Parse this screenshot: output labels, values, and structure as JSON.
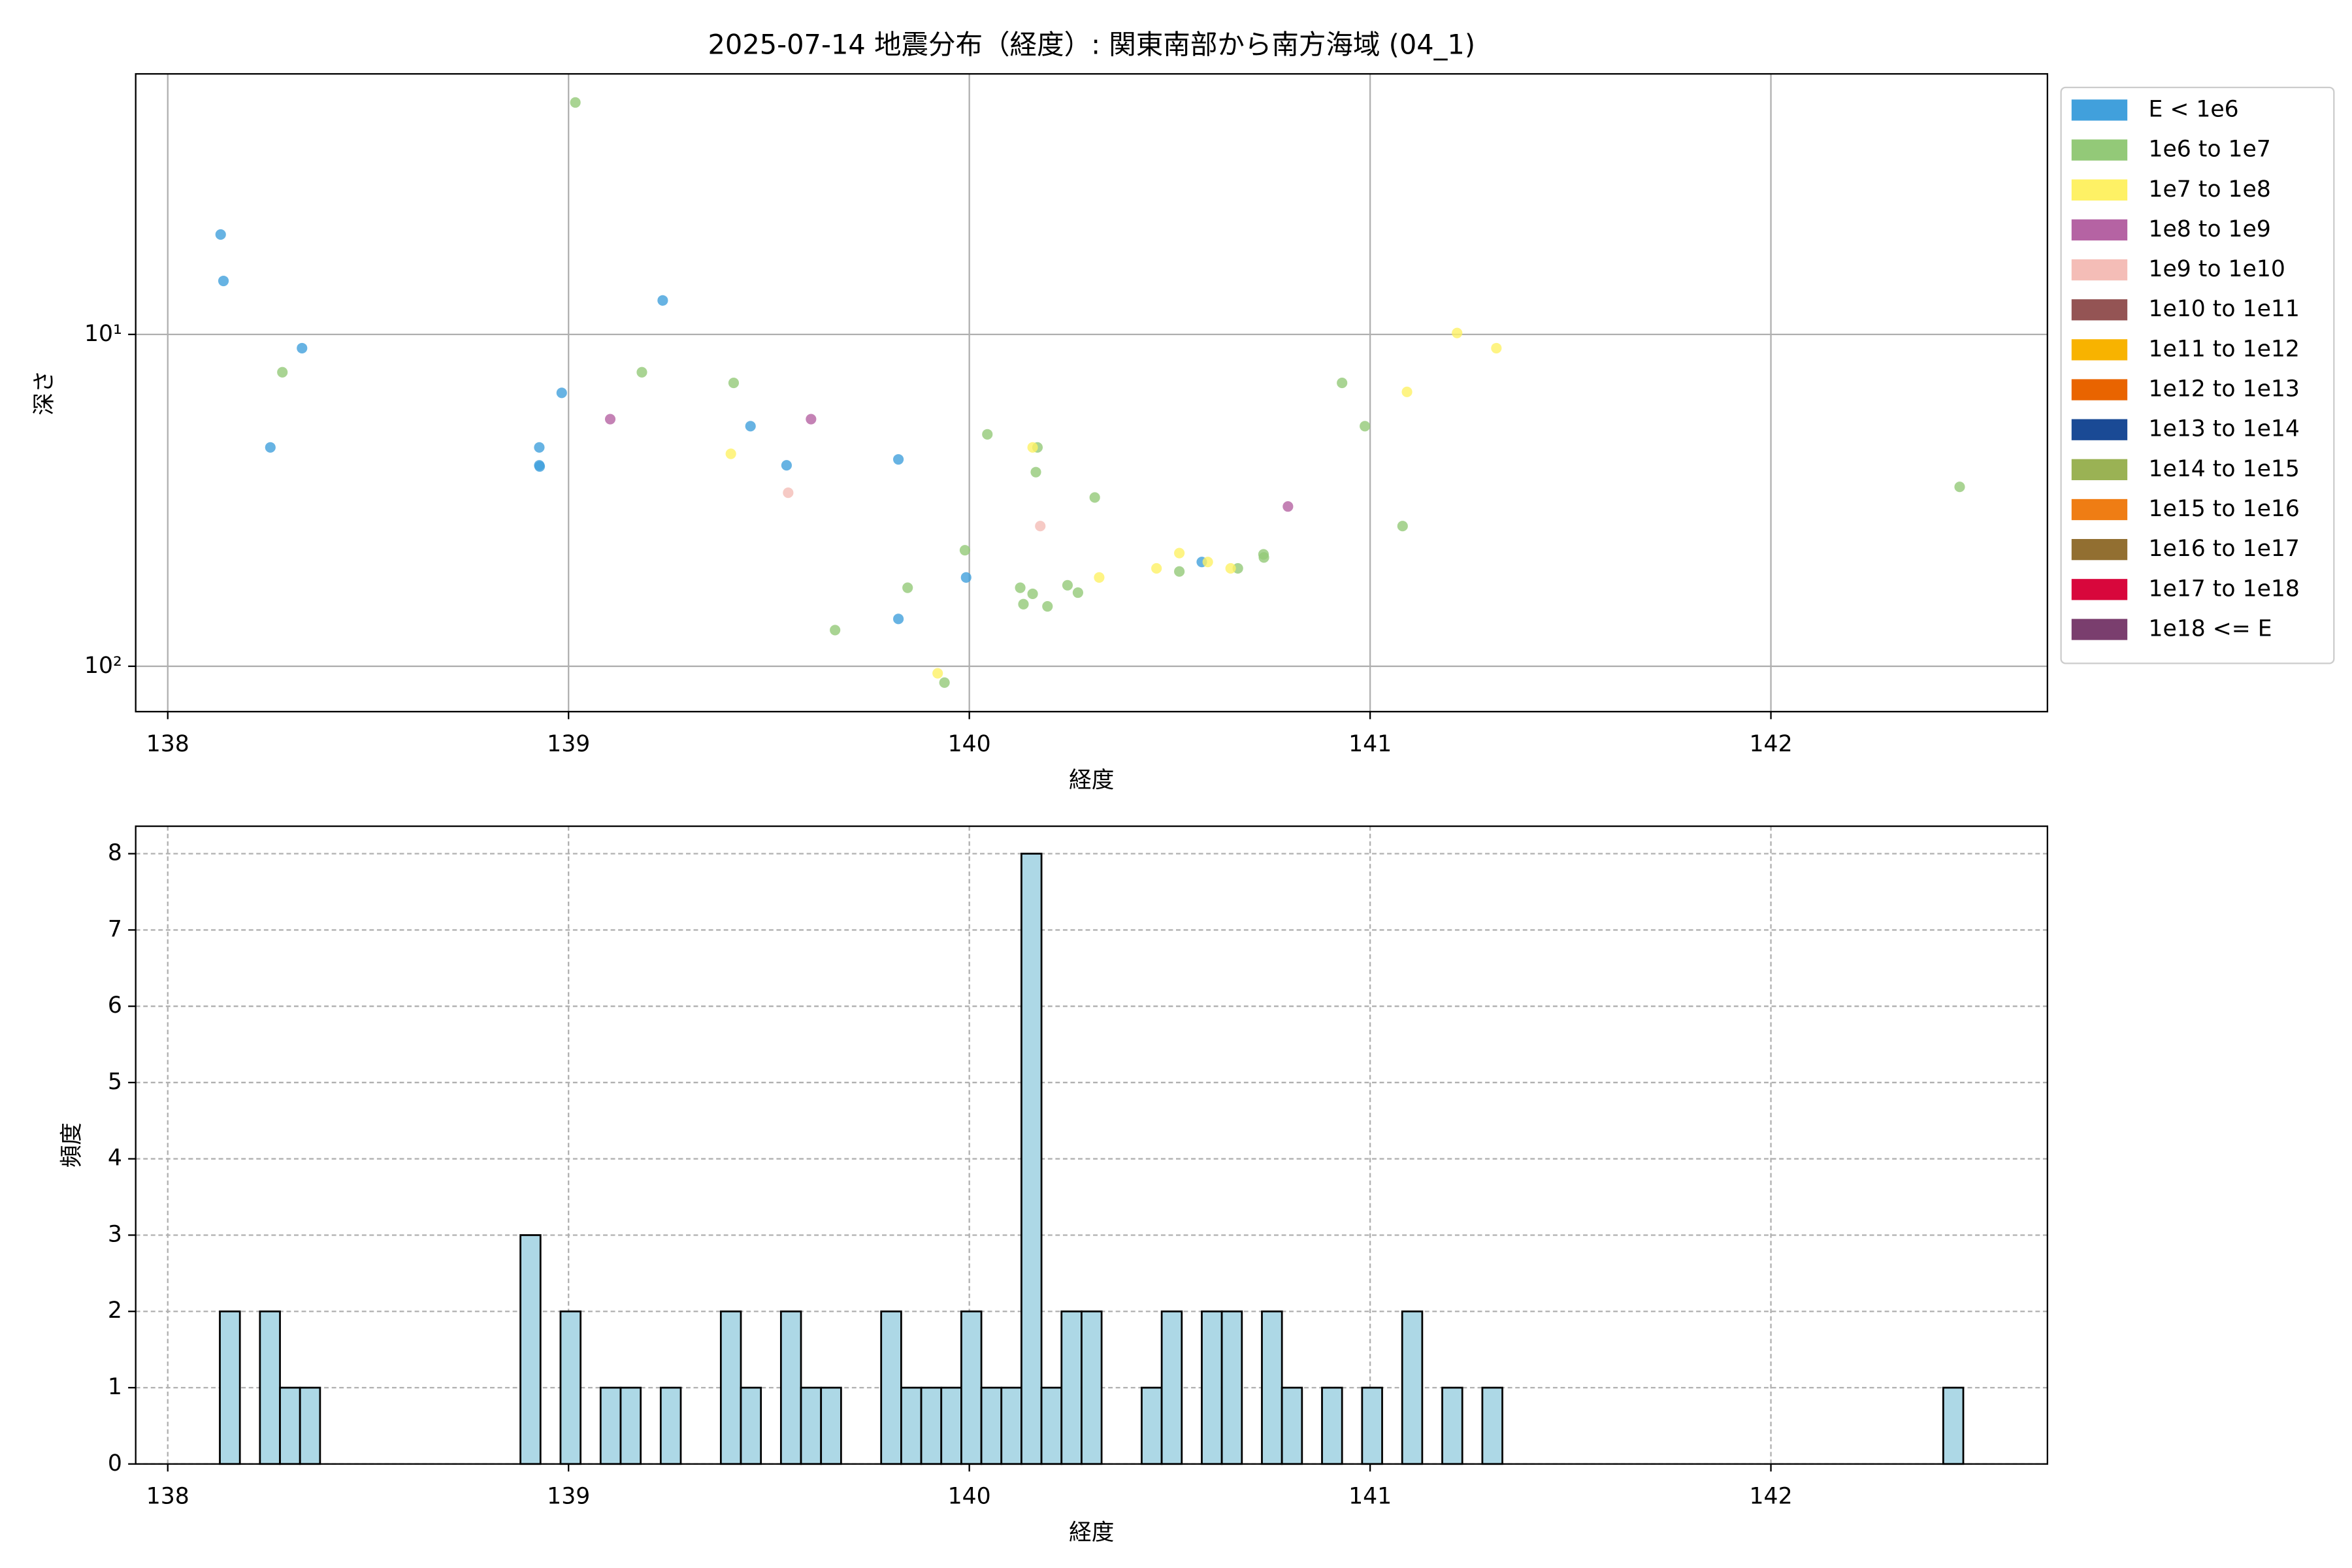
{
  "chart_data": [
    {
      "type": "scatter",
      "title": "2025-07-14 地震分布（経度）: 関東南部から南方海域 (04_1)",
      "x_label": "経度",
      "y_label": "深さ",
      "xlim": [
        137.92,
        142.69
      ],
      "xticks": [
        138,
        139,
        140,
        141,
        142
      ],
      "ylim": [
        1.64,
        137
      ],
      "y_scale": "log",
      "y_inverted": true,
      "yticks": [
        {
          "value": 10,
          "label": "10¹"
        },
        {
          "value": 100,
          "label": "10²"
        }
      ],
      "grid": true,
      "legend": "outside upper right",
      "series": [
        {
          "name": "E < 1e6",
          "color": "#41a0dc",
          "x": [
            138.132,
            138.139,
            138.256,
            138.335,
            138.927,
            138.927,
            138.928,
            138.983,
            139.235,
            139.454,
            139.544,
            139.823,
            139.823,
            139.992,
            140.58
          ],
          "y": [
            5.0,
            6.9,
            21.9,
            11.0,
            21.9,
            24.8,
            25.0,
            15.0,
            7.9,
            18.9,
            24.8,
            23.8,
            72,
            54,
            48.5
          ]
        },
        {
          "name": "1e6 to 1e7",
          "color": "#93c978",
          "x": [
            139.017,
            138.286,
            139.183,
            139.412,
            140.045,
            140.17,
            140.166,
            140.313,
            139.989,
            139.846,
            139.665,
            139.938,
            140.127,
            140.135,
            140.158,
            140.195,
            140.245,
            140.271,
            140.524,
            140.67,
            140.734,
            140.735,
            140.93,
            140.987,
            141.081,
            142.471
          ],
          "y": [
            2.0,
            13.0,
            13.0,
            14.0,
            20,
            21.9,
            26,
            31,
            44.7,
            58,
            77.8,
            112,
            58,
            65,
            60.5,
            66,
            57,
            60,
            51.8,
            50.7,
            46,
            47,
            14.0,
            18.9,
            37.8,
            28.8
          ]
        },
        {
          "name": "1e7 to 1e8",
          "color": "#fef165",
          "x": [
            139.405,
            140.158,
            140.324,
            140.467,
            140.524,
            140.595,
            140.652,
            139.921,
            141.092,
            141.217,
            141.315
          ],
          "y": [
            22.9,
            21.9,
            54,
            50.7,
            45.6,
            48.5,
            50.7,
            105,
            14.9,
            9.9,
            11.0
          ]
        },
        {
          "name": "1e8 to 1e9",
          "color": "#b563a3",
          "x": [
            139.104,
            139.605,
            140.795
          ],
          "y": [
            18,
            18,
            33
          ]
        },
        {
          "name": "1e9 to 1e10",
          "color": "#f4bdb7",
          "x": [
            139.548,
            140.177
          ],
          "y": [
            30,
            37.8
          ]
        },
        {
          "name": "1e10 to 1e11",
          "color": "#945454",
          "x": [],
          "y": []
        },
        {
          "name": "1e11 to 1e12",
          "color": "#f8b300",
          "x": [],
          "y": []
        },
        {
          "name": "1e12 to 1e13",
          "color": "#e96400",
          "x": [],
          "y": []
        },
        {
          "name": "1e13 to 1e14",
          "color": "#1a4a95",
          "x": [],
          "y": []
        },
        {
          "name": "1e14 to 1e15",
          "color": "#9ab254",
          "x": [],
          "y": []
        },
        {
          "name": "1e15 to 1e16",
          "color": "#ef7d14",
          "x": [],
          "y": []
        },
        {
          "name": "1e16 to 1e17",
          "color": "#926f31",
          "x": [],
          "y": []
        },
        {
          "name": "1e17 to 1e18",
          "color": "#d8073c",
          "x": [],
          "y": []
        },
        {
          "name": "1e18 <= E",
          "color": "#7a3e6e",
          "x": [],
          "y": []
        }
      ]
    },
    {
      "type": "histogram",
      "x_label": "経度",
      "y_label": "頻度",
      "color": "#add8e6",
      "edgecolor": "#000000",
      "xlim": [
        137.92,
        142.69
      ],
      "xticks": [
        138,
        139,
        140,
        141,
        142
      ],
      "ylim": [
        0,
        8.36
      ],
      "yticks": [
        0,
        1,
        2,
        3,
        4,
        5,
        6,
        7,
        8
      ],
      "grid": true,
      "grid_style": "dashed",
      "bins": [
        138.13,
        138.18,
        138.23,
        138.28,
        138.33,
        138.38,
        138.43,
        138.48,
        138.53,
        138.58,
        138.63,
        138.68,
        138.73,
        138.78,
        138.83,
        138.88,
        138.93,
        138.98,
        139.03,
        139.08,
        139.13,
        139.18,
        139.23,
        139.28,
        139.33,
        139.38,
        139.43,
        139.48,
        139.53,
        139.58,
        139.63,
        139.68,
        139.73,
        139.78,
        139.83,
        139.88,
        139.93,
        139.98,
        140.03,
        140.08,
        140.13,
        140.18,
        140.23,
        140.28,
        140.33,
        140.38,
        140.43,
        140.48,
        140.53,
        140.58,
        140.63,
        140.68,
        140.73,
        140.78,
        140.83,
        140.88,
        140.93,
        140.98,
        141.03,
        141.08,
        141.13,
        141.18,
        141.23,
        141.28,
        141.33,
        141.38,
        141.43,
        141.48,
        141.53,
        141.58,
        141.63,
        141.68,
        141.73,
        141.78,
        141.83,
        141.88,
        141.93,
        141.98,
        142.03,
        142.08,
        142.13,
        142.18,
        142.23,
        142.28,
        142.33,
        142.38,
        142.43,
        142.48
      ],
      "counts": [
        2,
        0,
        2,
        1,
        1,
        0,
        0,
        0,
        0,
        0,
        0,
        0,
        0,
        0,
        0,
        3,
        0,
        2,
        0,
        1,
        1,
        0,
        1,
        0,
        0,
        2,
        1,
        0,
        2,
        1,
        1,
        0,
        0,
        2,
        1,
        1,
        1,
        2,
        1,
        1,
        8,
        1,
        2,
        2,
        0,
        0,
        1,
        2,
        0,
        2,
        2,
        0,
        2,
        1,
        0,
        1,
        0,
        1,
        0,
        2,
        0,
        1,
        0,
        1,
        0,
        0,
        0,
        0,
        0,
        0,
        0,
        0,
        0,
        0,
        0,
        0,
        0,
        0,
        0,
        0,
        0,
        0,
        0,
        0,
        0,
        0,
        1
      ]
    }
  ]
}
